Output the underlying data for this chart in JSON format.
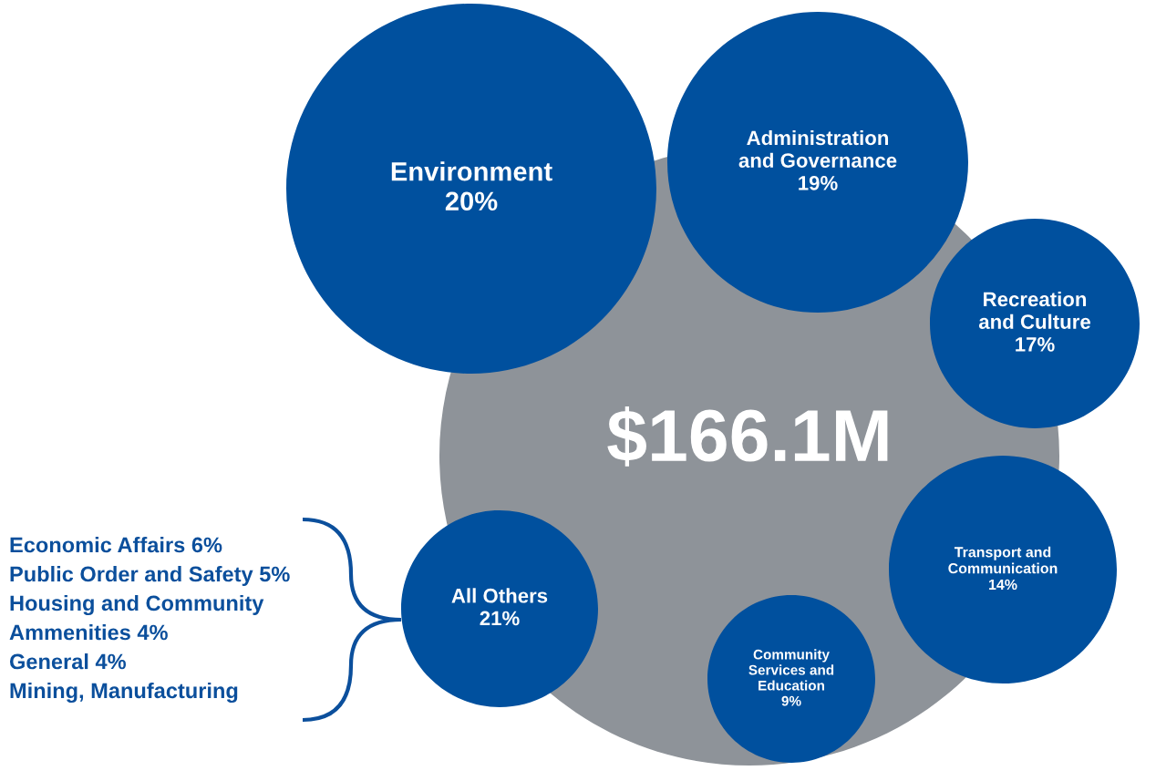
{
  "chart_data": {
    "type": "other",
    "title": "$166.1M",
    "categories": [
      "Environment",
      "Administration and Governance",
      "Recreation and Culture",
      "Transport and Communication",
      "Community Services and Education",
      "All Others"
    ],
    "values": [
      20,
      19,
      17,
      14,
      9,
      21
    ],
    "value_labels": [
      "20%",
      "19%",
      "17%",
      "14%",
      "9%",
      "21%"
    ],
    "colors": [
      "#00509e",
      "#00509e",
      "#00509e",
      "#00509e",
      "#00509e",
      "#00509e"
    ],
    "annotations": [
      "Economic Affairs 6%",
      "Public Order and Safety 5%",
      "Housing and Community",
      "Ammenities 4%",
      "General 4%",
      "Mining, Manufacturing"
    ]
  }
}
